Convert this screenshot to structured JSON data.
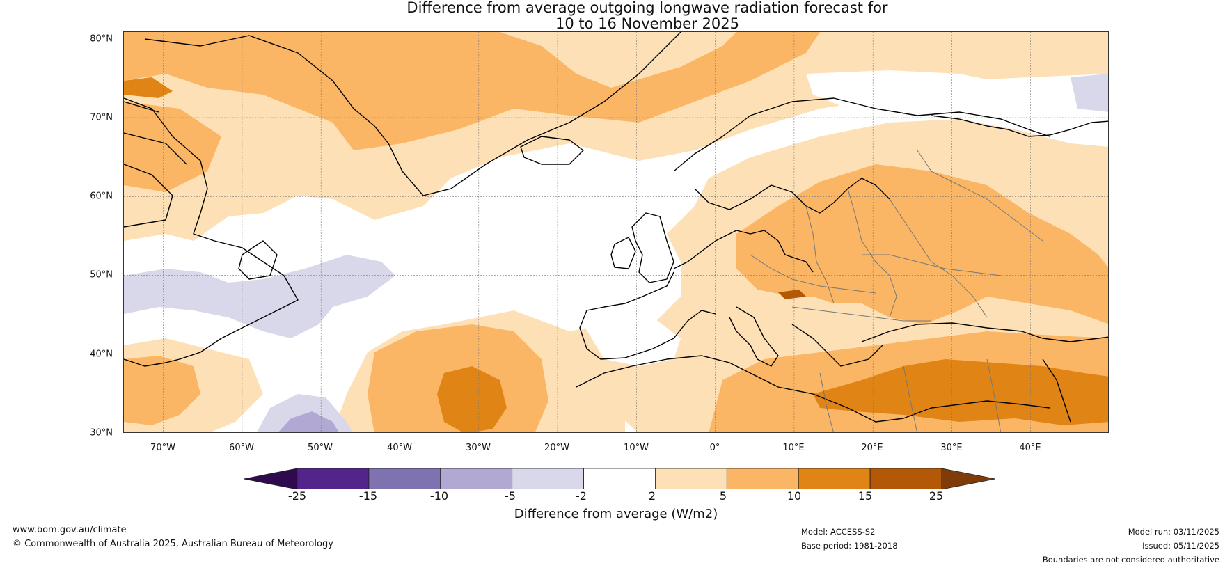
{
  "title": {
    "line1": "Difference from average outgoing longwave radiation forecast for",
    "line2": "10 to 16 November 2025"
  },
  "map": {
    "latitude_labels": [
      "80°N",
      "70°N",
      "60°N",
      "50°N",
      "40°N",
      "30°N"
    ],
    "longitude_labels": [
      "70°W",
      "60°W",
      "50°W",
      "40°W",
      "30°W",
      "20°W",
      "10°W",
      "0°",
      "10°E",
      "20°E",
      "30°E",
      "40°E"
    ],
    "lat_range_deg": [
      30,
      81
    ],
    "lon_range_deg": [
      -75,
      50
    ]
  },
  "legend": {
    "title": "Difference from average (W/m2)",
    "tick_labels": [
      "-25",
      "-15",
      "-10",
      "-5",
      "-2",
      "2",
      "5",
      "10",
      "15",
      "25"
    ],
    "bins": [
      {
        "range": "< -25",
        "color": "#2d0b4e"
      },
      {
        "range": "-25 to -15",
        "color": "#53258a"
      },
      {
        "range": "-15 to -10",
        "color": "#7f72b0"
      },
      {
        "range": "-10 to -5",
        "color": "#b1a9d3"
      },
      {
        "range": "-5 to -2",
        "color": "#d9d8ea"
      },
      {
        "range": "-2 to 2",
        "color": "#ffffff"
      },
      {
        "range": "2 to 5",
        "color": "#fde0b5"
      },
      {
        "range": "5 to 10",
        "color": "#fbb665"
      },
      {
        "range": "10 to 15",
        "color": "#e08416"
      },
      {
        "range": "15 to 25",
        "color": "#b35807"
      },
      {
        "range": "> 25",
        "color": "#7f3b08"
      }
    ]
  },
  "footer": {
    "website": "www.bom.gov.au/climate",
    "copyright": "© Commonwealth of Australia 2025, Australian Bureau of Meteorology",
    "model": "Model: ACCESS-S2",
    "base_period": "Base period: 1981-2018",
    "model_run": "Model run: 03/11/2025",
    "issued": "Issued: 05/11/2025",
    "disclaimer": "Boundaries are not considered authoritative"
  }
}
